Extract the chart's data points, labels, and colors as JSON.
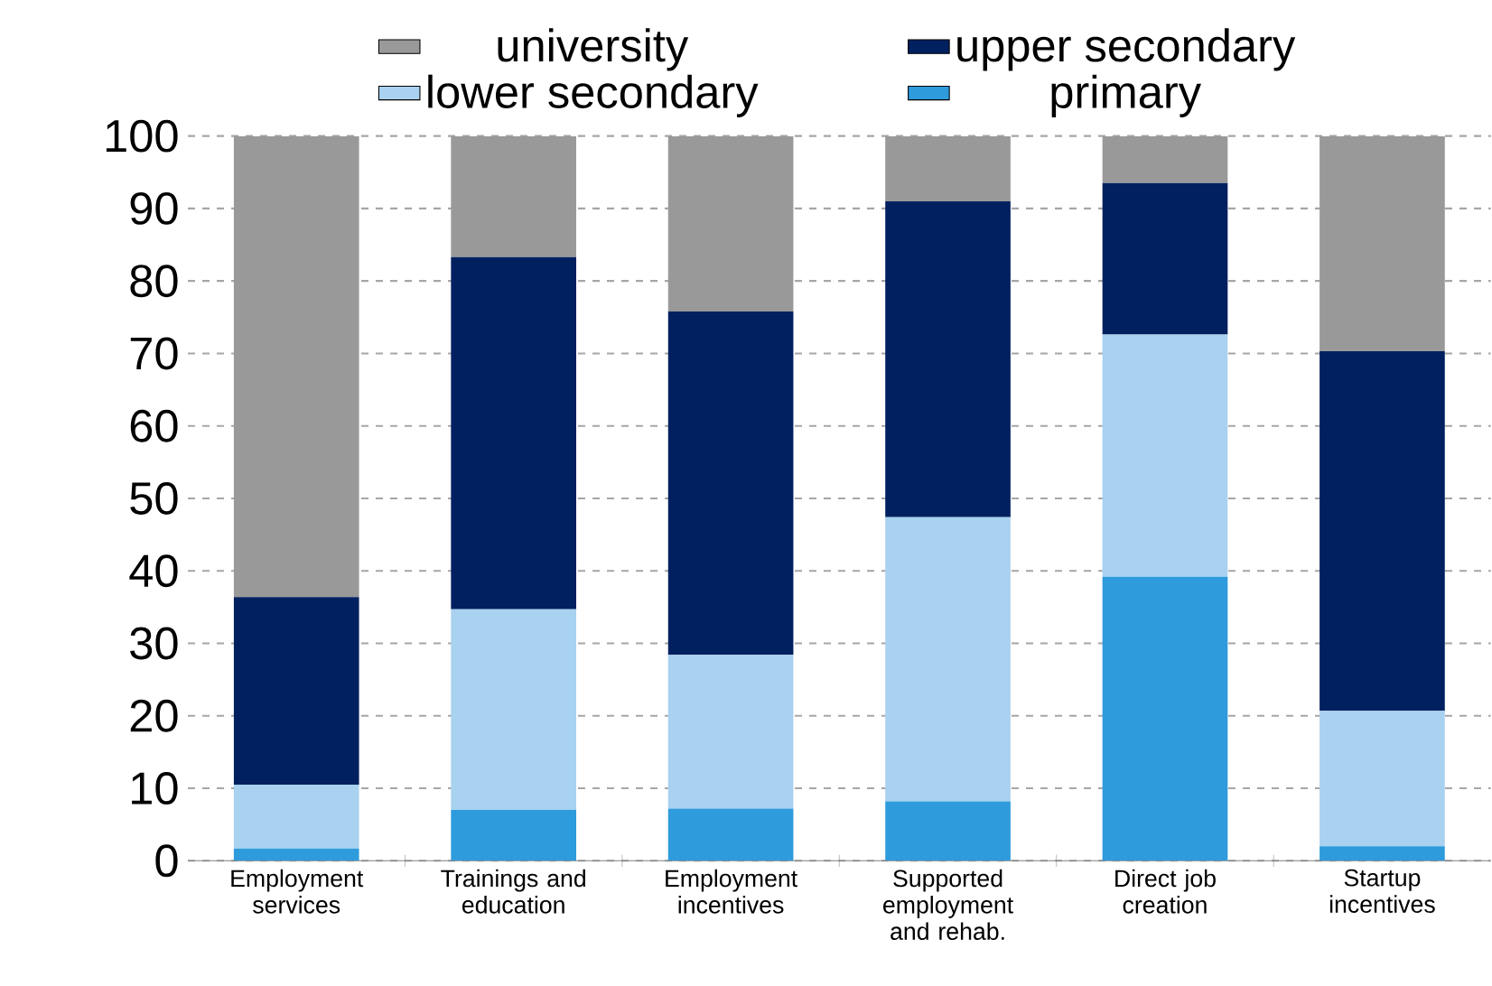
{
  "chart_data": {
    "type": "bar",
    "stacked": true,
    "categories": [
      "Employment services",
      "Trainings and education",
      "Employment incentives",
      "Supported employment and rehab.",
      "Direct job creation",
      "Startup incentives"
    ],
    "series": [
      {
        "name": "primary",
        "color": "#2e9bdc",
        "values": [
          1.7,
          7,
          7.2,
          8.2,
          39.2,
          2
        ]
      },
      {
        "name": "lower secondary",
        "color": "#a9d1f0",
        "values": [
          8.8,
          27.7,
          21.2,
          39.2,
          33.4,
          18.7
        ]
      },
      {
        "name": "upper secondary",
        "color": "#002060",
        "values": [
          25.9,
          48.6,
          47.4,
          43.6,
          20.9,
          49.6
        ]
      },
      {
        "name": "university",
        "color": "#999999",
        "values": [
          63.6,
          16.7,
          24.2,
          9,
          6.5,
          29.7
        ]
      }
    ],
    "ylim": [
      0,
      100
    ],
    "yticks": [
      0,
      10,
      20,
      30,
      40,
      50,
      60,
      70,
      80,
      90,
      100
    ],
    "grid": "y",
    "legend": "top"
  }
}
